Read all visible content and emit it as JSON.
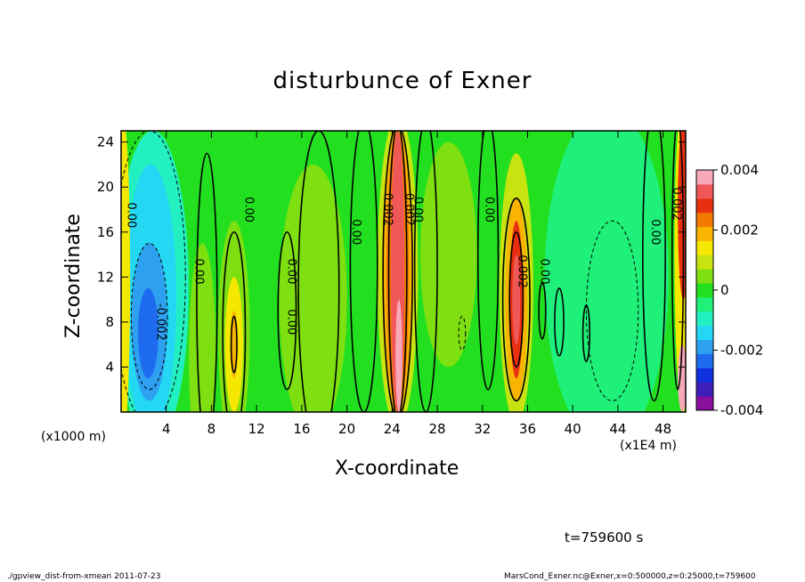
{
  "chart_data": {
    "type": "heatmap",
    "title": "disturbunce of Exner",
    "xlabel": "X-coordinate",
    "ylabel": "Z-coordinate",
    "x_unit_label": "(x1000 m)",
    "x_unit_label_2": "(x1E4 m)",
    "x_ticks": [
      "4",
      "8",
      "12",
      "16",
      "20",
      "24",
      "28",
      "32",
      "36",
      "40",
      "44",
      "48"
    ],
    "y_ticks": [
      "4",
      "8",
      "12",
      "16",
      "20",
      "24"
    ],
    "xlim": [
      0,
      50
    ],
    "ylim": [
      0,
      25
    ],
    "colorbar": {
      "ticks": [
        "0.004",
        "0.002",
        "0",
        "-0.002",
        "-0.004"
      ],
      "min": -0.004,
      "max": 0.004,
      "colors": [
        "#8a0f9e",
        "#3b1fb8",
        "#1030e0",
        "#1e6bf0",
        "#2ea0f0",
        "#24d7f2",
        "#22f0c0",
        "#1ef07a",
        "#22e020",
        "#7ee010",
        "#c8e410",
        "#f4e800",
        "#f8b400",
        "#f27a00",
        "#e83010",
        "#f05858",
        "#f8a8b8"
      ]
    },
    "fields": [
      {
        "x": 2.5,
        "z": 11,
        "value": -0.0015,
        "note": "negative region"
      },
      {
        "x": 2.5,
        "z": 7,
        "value": -0.0022,
        "note": "minimum"
      },
      {
        "x": 10,
        "z": 7,
        "value": 0.0012,
        "note": "positive band"
      },
      {
        "x": 24.5,
        "z": 12,
        "value": 0.0035,
        "note": "strong positive band"
      },
      {
        "x": 35,
        "z": 10,
        "value": 0.003,
        "note": "positive band"
      },
      {
        "x": 44,
        "z": 10,
        "value": -0.0008,
        "note": "negative region"
      },
      {
        "x": 49.5,
        "z": 15,
        "value": 0.003,
        "note": "positive band at edge"
      }
    ],
    "contour_labels": [
      {
        "text": "0.00",
        "x": 0.6,
        "z": 17.5
      },
      {
        "text": "-0.002",
        "x": 3.2,
        "z": 8
      },
      {
        "text": "0.00",
        "x": 6.6,
        "z": 12.5
      },
      {
        "text": "0.00",
        "x": 11.0,
        "z": 18
      },
      {
        "text": "0.00",
        "x": 14.8,
        "z": 12.5
      },
      {
        "text": "0.00",
        "x": 14.8,
        "z": 8
      },
      {
        "text": "0.00",
        "x": 20.5,
        "z": 16
      },
      {
        "text": "0.002",
        "x": 23.3,
        "z": 18
      },
      {
        "text": "0.002",
        "x": 25.2,
        "z": 18
      },
      {
        "text": "0.00",
        "x": 26.0,
        "z": 18
      },
      {
        "text": "0.00",
        "x": 32.3,
        "z": 18
      },
      {
        "text": "0.002",
        "x": 35.2,
        "z": 12.5
      },
      {
        "text": "0.00",
        "x": 37.2,
        "z": 12.5
      },
      {
        "text": "0.00",
        "x": 47.0,
        "z": 16
      },
      {
        "text": "0.002",
        "x": 48.9,
        "z": 18.5
      }
    ]
  },
  "annotations": {
    "time": "t=759600 s",
    "footer_left": "./gpview_dist-from-xmean   2011-07-23",
    "footer_right": "MarsCond_Exner.nc@Exner,x=0:500000,z=0:25000,t=759600"
  }
}
